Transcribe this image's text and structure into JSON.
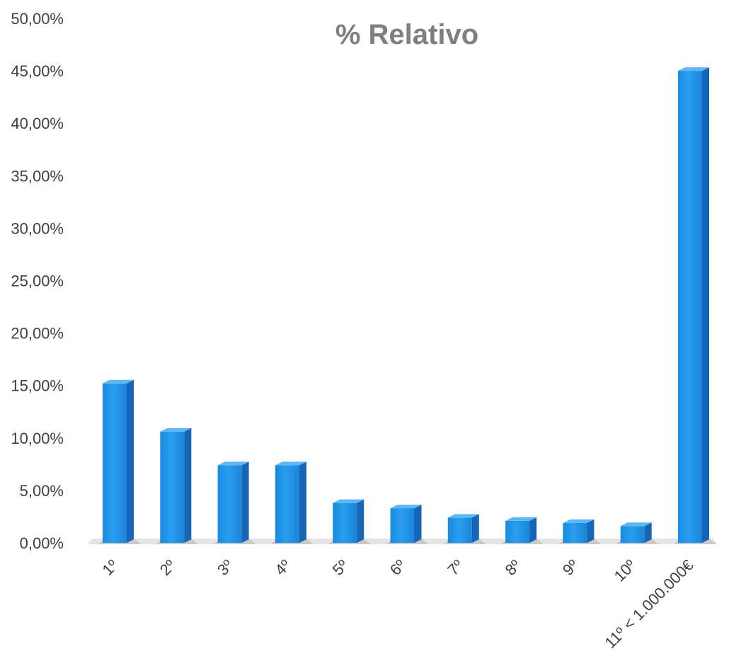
{
  "chart_data": {
    "type": "bar",
    "title": "% Relativo",
    "xlabel": "",
    "ylabel": "",
    "categories": [
      "1º",
      "2º",
      "3º",
      "4º",
      "5º",
      "6º",
      "7º",
      "8º",
      "9º",
      "10º",
      "11º < 1.000.000€"
    ],
    "values": [
      15.2,
      10.6,
      7.4,
      7.4,
      3.8,
      3.3,
      2.4,
      2.1,
      1.9,
      1.6,
      45.0
    ],
    "ylim": [
      0,
      50
    ],
    "yticks": [
      "0,00%",
      "5,00%",
      "10,00%",
      "15,00%",
      "20,00%",
      "25,00%",
      "30,00%",
      "35,00%",
      "40,00%",
      "45,00%",
      "50,00%"
    ],
    "grid": false,
    "legend": "none",
    "style": "3d-column",
    "colors": {
      "bar_front": "#2196e8",
      "bar_side": "#1565b8",
      "bar_top": "#5ab8f5",
      "title": "#7f7f7f",
      "text": "#404040"
    }
  }
}
